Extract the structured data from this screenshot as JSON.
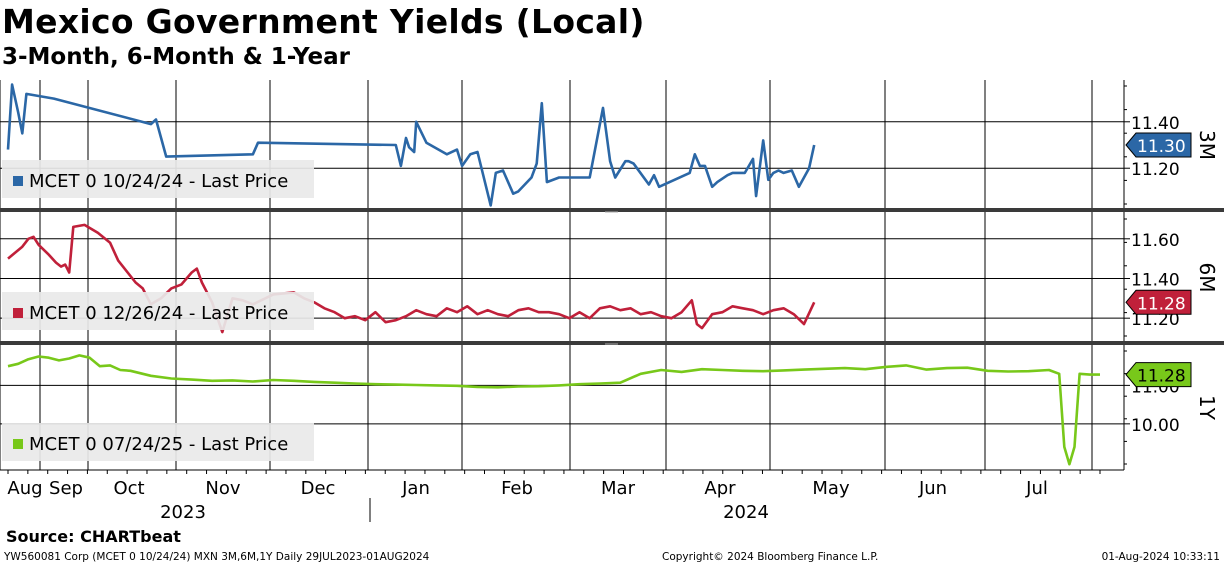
{
  "title": "Mexico Government Yields (Local)",
  "subtitle": "3-Month, 6-Month & 1-Year",
  "source": "Source: CHARTbeat",
  "footer": {
    "left": "YW560081 Corp (MCET 0 10/24/24) MXN 3M,6M,1Y  Daily 29JUL2023-01AUG2024",
    "center": "Copyright© 2024 Bloomberg Finance L.P.",
    "right": "01-Aug-2024 10:33:11"
  },
  "x_axis": {
    "months": [
      "Aug",
      "Sep",
      "Oct",
      "Nov",
      "Dec",
      "Jan",
      "Feb",
      "Mar",
      "Apr",
      "May",
      "Jun",
      "Jul"
    ],
    "years": [
      "2023",
      "2024"
    ]
  },
  "chart_data": [
    {
      "type": "line",
      "panel_label": "3M",
      "series": [
        {
          "name": "MCET 0 10/24/24 - Last Price",
          "color": "#2b67a6",
          "last_value": "11.30",
          "x": [
            0,
            4,
            10,
            14,
            18,
            45,
            140,
            145,
            150,
            155,
            240,
            245,
            380,
            385,
            390,
            393,
            398,
            400,
            410,
            430,
            440,
            445,
            453,
            460,
            473,
            478,
            485,
            495,
            500,
            513,
            518,
            523,
            528,
            540,
            560,
            563,
            570,
            583,
            590,
            595,
            605,
            608,
            613,
            628,
            633,
            638,
            668,
            673,
            678,
            683,
            690,
            695,
            705,
            710,
            722,
            730,
            733,
            740,
            745,
            750,
            755,
            760,
            768,
            775,
            785,
            790
          ],
          "values": [
            11.28,
            11.56,
            11.44,
            11.35,
            11.52,
            11.5,
            11.39,
            11.41,
            11.33,
            11.25,
            11.26,
            11.31,
            11.3,
            11.21,
            11.33,
            11.29,
            11.27,
            11.4,
            11.31,
            11.26,
            11.28,
            11.21,
            11.26,
            11.27,
            11.04,
            11.18,
            11.19,
            11.09,
            11.1,
            11.16,
            11.22,
            11.48,
            11.14,
            11.16,
            11.16,
            11.16,
            11.16,
            11.46,
            11.23,
            11.16,
            11.23,
            11.23,
            11.22,
            11.13,
            11.17,
            11.12,
            11.18,
            11.26,
            11.21,
            11.21,
            11.12,
            11.14,
            11.17,
            11.18,
            11.18,
            11.24,
            11.08,
            11.32,
            11.15,
            11.18,
            11.19,
            11.18,
            11.19,
            11.12,
            11.2,
            11.3
          ]
        }
      ],
      "y_ticks": [
        "11.40",
        "11.20"
      ],
      "y_range": [
        11.02,
        11.58
      ]
    },
    {
      "type": "line",
      "panel_label": "6M",
      "series": [
        {
          "name": "MCET 0 12/26/24 - Last Price",
          "color": "#c0203a",
          "last_value": "11.28",
          "x": [
            0,
            14,
            20,
            25,
            30,
            40,
            47,
            52,
            56,
            60,
            64,
            75,
            88,
            100,
            108,
            125,
            132,
            140,
            150,
            160,
            170,
            180,
            185,
            190,
            200,
            210,
            220,
            230,
            240,
            260,
            280,
            290,
            300,
            310,
            320,
            330,
            340,
            350,
            360,
            370,
            380,
            390,
            400,
            410,
            420,
            430,
            440,
            450,
            460,
            470,
            480,
            490,
            500,
            510,
            520,
            530,
            540,
            550,
            560,
            570,
            580,
            590,
            600,
            610,
            620,
            630,
            640,
            650,
            660,
            670,
            675,
            680,
            690,
            700,
            710,
            720,
            730,
            740,
            750,
            760,
            770,
            780,
            790
          ],
          "values": [
            11.5,
            11.56,
            11.6,
            11.61,
            11.57,
            11.52,
            11.48,
            11.46,
            11.47,
            11.43,
            11.66,
            11.67,
            11.63,
            11.58,
            11.49,
            11.38,
            11.35,
            11.27,
            11.3,
            11.35,
            11.37,
            11.43,
            11.45,
            11.38,
            11.28,
            11.13,
            11.3,
            11.29,
            11.27,
            11.32,
            11.33,
            11.3,
            11.28,
            11.25,
            11.23,
            11.2,
            11.21,
            11.19,
            11.23,
            11.18,
            11.19,
            11.21,
            11.24,
            11.22,
            11.21,
            11.25,
            11.23,
            11.26,
            11.22,
            11.24,
            11.22,
            11.21,
            11.24,
            11.25,
            11.23,
            11.23,
            11.22,
            11.2,
            11.23,
            11.2,
            11.25,
            11.26,
            11.24,
            11.25,
            11.22,
            11.23,
            11.21,
            11.2,
            11.23,
            11.29,
            11.17,
            11.15,
            11.22,
            11.23,
            11.26,
            11.25,
            11.24,
            11.22,
            11.24,
            11.25,
            11.22,
            11.17,
            11.28
          ]
        }
      ],
      "y_ticks": [
        "11.60",
        "11.40",
        "11.20"
      ],
      "y_range": [
        11.08,
        11.73
      ]
    },
    {
      "type": "line",
      "panel_label": "1Y",
      "series": [
        {
          "name": "MCET 0 07/24/25 - Last Price",
          "color": "#78c81a",
          "last_value": "11.28",
          "x": [
            0,
            10,
            20,
            30,
            40,
            50,
            60,
            70,
            80,
            90,
            100,
            110,
            120,
            140,
            160,
            180,
            200,
            220,
            240,
            260,
            280,
            300,
            320,
            340,
            360,
            380,
            400,
            420,
            440,
            460,
            480,
            500,
            520,
            540,
            560,
            580,
            600,
            620,
            640,
            660,
            680,
            700,
            720,
            740,
            760,
            780,
            800,
            820,
            840,
            860,
            880,
            900,
            920,
            940,
            960,
            980,
            1000,
            1020,
            1030,
            1035,
            1040,
            1045,
            1050,
            1060,
            1070
          ],
          "values": [
            11.5,
            11.56,
            11.68,
            11.75,
            11.72,
            11.65,
            11.7,
            11.78,
            11.72,
            11.5,
            11.52,
            11.4,
            11.38,
            11.25,
            11.18,
            11.15,
            11.12,
            11.13,
            11.1,
            11.14,
            11.12,
            11.09,
            11.07,
            11.05,
            11.03,
            11.02,
            11.01,
            11.0,
            10.99,
            10.96,
            10.95,
            10.97,
            10.98,
            11.0,
            11.03,
            11.05,
            11.07,
            11.3,
            11.4,
            11.35,
            11.42,
            11.4,
            11.38,
            11.37,
            11.39,
            11.41,
            11.43,
            11.45,
            11.42,
            11.48,
            11.52,
            11.41,
            11.45,
            11.46,
            11.38,
            11.36,
            11.37,
            11.4,
            11.3,
            9.4,
            8.95,
            9.4,
            11.3,
            11.28,
            11.28
          ]
        }
      ],
      "y_ticks": [
        "11.00",
        "10.00"
      ],
      "y_range": [
        8.8,
        12.05
      ]
    }
  ]
}
